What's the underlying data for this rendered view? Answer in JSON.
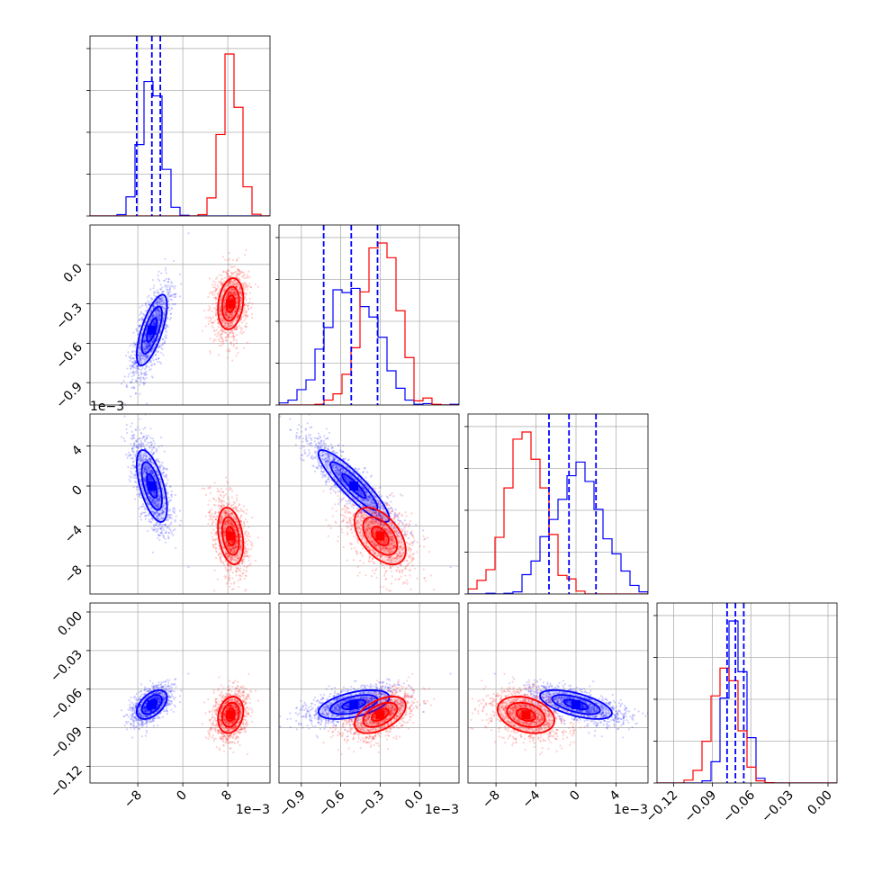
{
  "chart_data": {
    "type": "corner",
    "parameters": 4,
    "series": [
      {
        "name": "",
        "color": "#0000ff",
        "mean": [
          -0.0055,
          -0.0005,
          0.0,
          -0.072
        ],
        "std": [
          0.0018,
          0.00018,
          0.0024,
          0.0075
        ],
        "corr": [
          [
            1,
            0.7,
            -0.6,
            0.5
          ],
          [
            0.7,
            1,
            -0.9,
            0.5
          ],
          [
            -0.6,
            -0.9,
            1,
            -0.6
          ],
          [
            0.5,
            0.5,
            -0.6,
            1
          ]
        ]
      },
      {
        "name": "",
        "color": "#ff0000",
        "mean": [
          0.0085,
          -0.0003,
          -0.005,
          -0.08
        ],
        "std": [
          0.0015,
          0.00013,
          0.0019,
          0.0095
        ],
        "corr": [
          [
            1,
            0.2,
            -0.3,
            0.2
          ],
          [
            0.2,
            1,
            -0.5,
            0.5
          ],
          [
            -0.3,
            -0.5,
            1,
            -0.3
          ],
          [
            0.2,
            0.5,
            -0.3,
            1
          ]
        ]
      }
    ],
    "quantile_lines": {
      "color": "#0000ff",
      "values": [
        [
          -0.0082,
          -0.0055,
          -0.004
        ],
        [
          -0.00073,
          -0.00052,
          -0.00032
        ],
        [
          -0.0027,
          -0.0007,
          0.002
        ],
        [
          -0.0785,
          -0.072,
          -0.0655
        ]
      ]
    },
    "axes": [
      {
        "lim": [
          -0.0165,
          0.0155
        ],
        "ticks": [
          -0.008,
          0,
          0.008
        ],
        "tick_labels": [
          "−8",
          "0",
          "8"
        ],
        "offset_text": "1e−3"
      },
      {
        "lim": [
          -0.00107,
          0.0003
        ],
        "ticks": [
          -0.0009,
          -0.0006,
          -0.0003,
          0.0
        ],
        "tick_labels": [
          "−0.9",
          "−0.6",
          "−0.3",
          "0.0"
        ],
        "offset_text": "1e−3"
      },
      {
        "lim": [
          -0.0108,
          0.0072
        ],
        "ticks": [
          -0.008,
          -0.004,
          0,
          0.004
        ],
        "tick_labels": [
          "−8",
          "−4",
          "0",
          "4"
        ],
        "offset_text": "1e−3"
      },
      {
        "lim": [
          -0.133,
          0.007
        ],
        "ticks": [
          -0.12,
          -0.09,
          -0.06,
          -0.03,
          0.0
        ],
        "tick_labels": [
          "−0.12",
          "−0.09",
          "−0.06",
          "−0.03",
          "0.00"
        ],
        "offset_text": ""
      }
    ],
    "y_offset_text_rows": [
      "",
      "",
      "1e−3",
      ""
    ],
    "grid": true,
    "scatter_points_per_series": 1200,
    "contour_levels_sigma": [
      0.5,
      1.0,
      1.5
    ]
  }
}
